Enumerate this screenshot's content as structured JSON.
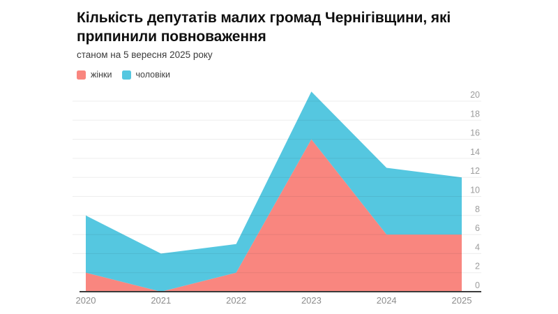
{
  "chart_data": {
    "type": "area",
    "stacked": true,
    "title": "Кількість депутатів малих громад Чернігівщини, які припинили повноваження",
    "subtitle": "станом на 5 вересня 2025 року",
    "categories": [
      "2020",
      "2021",
      "2022",
      "2023",
      "2024",
      "2025"
    ],
    "series": [
      {
        "name": "жінки",
        "color": "#f9867f",
        "values": [
          2,
          0,
          2,
          16,
          6,
          6
        ]
      },
      {
        "name": "чоловіки",
        "color": "#55c7e0",
        "values": [
          6,
          4,
          3,
          5,
          7,
          6
        ]
      }
    ],
    "stacked_totals": [
      8,
      4,
      5,
      21,
      13,
      12
    ],
    "xlabel": "",
    "ylabel": "",
    "ylim": [
      0,
      20
    ],
    "ytick_step": 2,
    "yticks": [
      0,
      2,
      4,
      6,
      8,
      10,
      12,
      14,
      16,
      18,
      20
    ],
    "yaxis_side": "right",
    "grid": true,
    "legend_position": "top-left",
    "colors": {
      "axis_line": "#3b3b3b",
      "x_tick_label": "#8c8c8c",
      "y_tick_label": "#9c9c9c",
      "background": "#ffffff"
    }
  }
}
